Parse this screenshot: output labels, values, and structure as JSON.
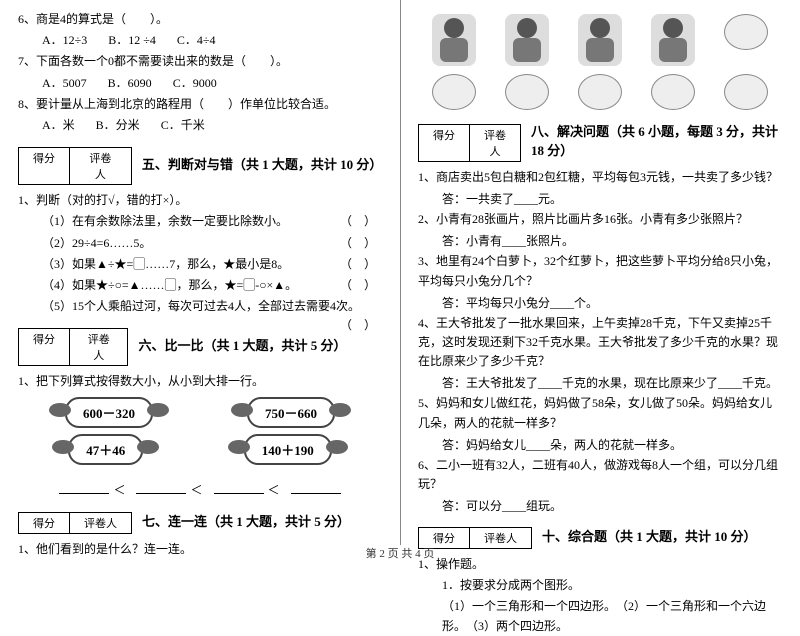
{
  "left": {
    "q6": {
      "text": "6、商是4的算式是（　　）。",
      "opts": [
        "A．12÷3",
        "B．12 ÷4",
        "C．4÷4"
      ]
    },
    "q7": {
      "text": "7、下面各数一个0都不需要读出来的数是（　　）。",
      "opts": [
        "A．5007",
        "B．6090",
        "C．9000"
      ]
    },
    "q8": {
      "text": "8、要计量从上海到北京的路程用（　　）作单位比较合适。",
      "opts": [
        "A．米",
        "B．分米",
        "C．千米"
      ]
    },
    "sec5": {
      "title": "五、判断对与错（共 1 大题，共计 10 分）",
      "lead": "1、判断（对的打√，错的打×）。",
      "items": [
        "（1）在有余数除法里，余数一定要比除数小。",
        "（2）29÷4=6……5。",
        "（3）如果▲÷★=▢……7，那么，★最小是8。",
        "（4）如果★÷○=▲……▢，那么，★=▢-○×▲。",
        "（5）15个人乘船过河，每次可过去4人，全部过去需要4次。"
      ]
    },
    "sec6": {
      "title": "六、比一比（共 1 大题，共计 5 分）",
      "lead": "1、把下列算式按得数大小，从小到大排一行。",
      "planes": [
        "600－320",
        "750－660",
        "47＋46",
        "140＋190"
      ]
    },
    "sec7": {
      "title": "七、连一连（共 1 大题，共计 5 分）",
      "lead": "1、他们看到的是什么？连一连。"
    },
    "score_labels": {
      "a": "得分",
      "b": "评卷人"
    },
    "lt": "＜"
  },
  "right": {
    "sec8": {
      "title": "八、解决问题（共 6 小题，每题 3 分，共计 18 分）",
      "q1": "1、商店卖出5包白糖和2包红糖，平均每包3元钱，一共卖了多少钱？",
      "a1": "答：一共卖了____元。",
      "q2": "2、小青有28张画片，照片比画片多16张。小青有多少张照片？",
      "a2": "答：小青有____张照片。",
      "q3": "3、地里有24个白萝卜，32个红萝卜，把这些萝卜平均分给8只小兔，平均每只小兔分几个？",
      "a3": "答：平均每只小兔分____个。",
      "q4": "4、王大爷批发了一批水果回来，上午卖掉28千克，下午又卖掉25千克，这时发现还剩下32千克水果。王大爷批发了多少千克的水果？现在比原来少了多少千克？",
      "a4": "答：王大爷批发了____千克的水果，现在比原来少了____千克。",
      "q5": "5、妈妈和女儿做红花，妈妈做了58朵，女儿做了50朵。妈妈给女儿几朵，两人的花就一样多？",
      "a5": "答：妈妈给女儿____朵，两人的花就一样多。",
      "q6": "6、二小一班有32人，二班有40人，做游戏每8人一个组，可以分几组玩？",
      "a6": "答：可以分____组玩。"
    },
    "sec10": {
      "title": "十、综合题（共 1 大题，共计 10 分）",
      "lead": "1、操作题。",
      "sub": "1．按要求分成两个图形。",
      "items": "（1）一个三角形和一个四边形。　（2）一个三角形和一个六边形。　（3）两个四边形。"
    },
    "score_labels": {
      "a": "得分",
      "b": "评卷人"
    }
  },
  "footer": "第 2 页 共 4 页"
}
